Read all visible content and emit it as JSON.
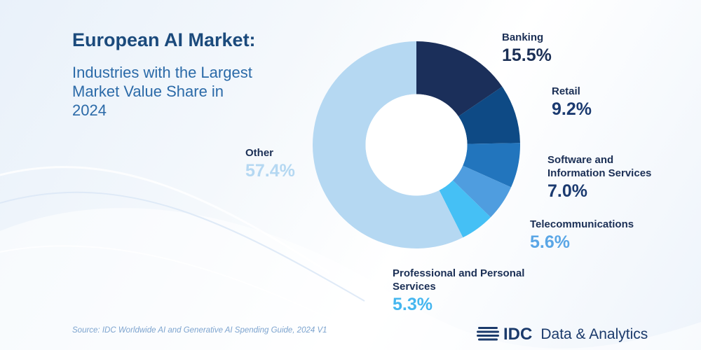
{
  "header": {
    "title": "European AI Market:",
    "subtitle": "Industries with the Largest Market Value Share in 2024"
  },
  "chart_data": {
    "type": "pie",
    "categories": [
      "Banking",
      "Retail",
      "Software and Information Services",
      "Telecommunications",
      "Professional and Personal Services",
      "Other"
    ],
    "values": [
      15.5,
      9.2,
      7.0,
      5.6,
      5.3,
      57.4
    ],
    "value_labels": [
      "15.5%",
      "9.2%",
      "7.0%",
      "5.6%",
      "5.3%",
      "57.4%"
    ],
    "colors": [
      "#1b2f5a",
      "#0e4a85",
      "#2275bd",
      "#4f9ddf",
      "#45c0f5",
      "#b5d8f2"
    ],
    "value_colors": [
      "#1b2f55",
      "#1b3a70",
      "#1b3a70",
      "#5aa6e6",
      "#45b6ef",
      "#b5d8f2"
    ],
    "start_angle_deg": 0,
    "direction": "clockwise",
    "inner_radius_ratio": 0.49
  },
  "footer": {
    "source": "Source: IDC Worldwide AI and Generative AI Spending Guide, 2024 V1",
    "brand_name": "IDC",
    "brand_suffix": "Data & Analytics",
    "logo_icon": "globe-lines-icon"
  }
}
